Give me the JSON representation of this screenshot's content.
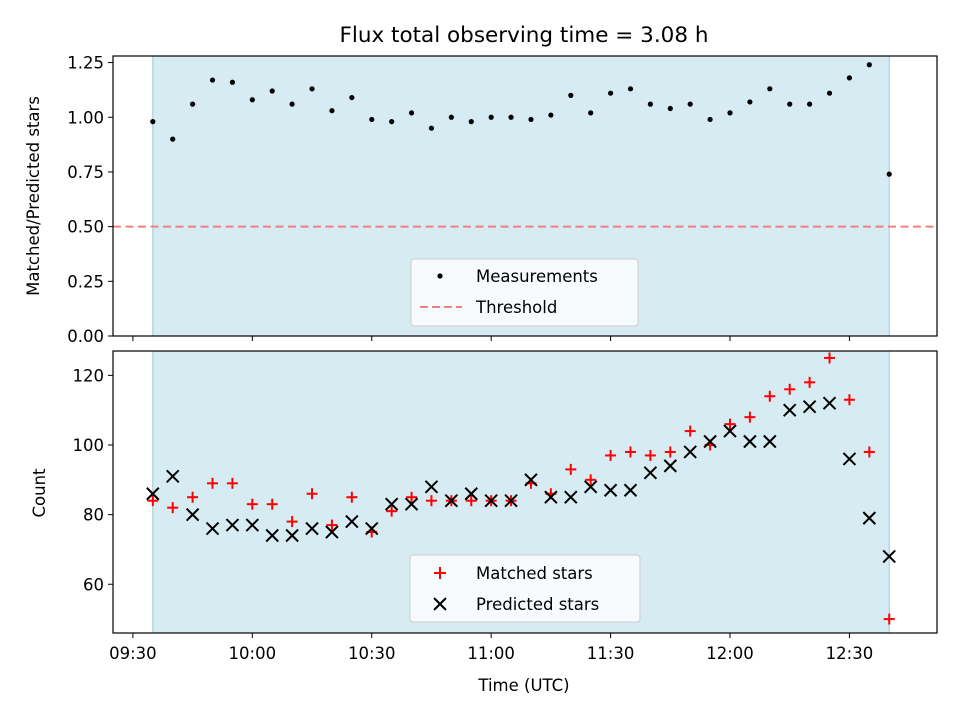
{
  "chart_data": [
    {
      "type": "scatter",
      "title": "Flux total observing time = 3.08 h",
      "xlabel": "",
      "ylabel": "Matched/Predicted stars",
      "ylim": [
        0,
        1.28
      ],
      "yticks": [
        "0.00",
        "0.25",
        "0.50",
        "0.75",
        "1.00",
        "1.25"
      ],
      "ytick_values": [
        0,
        0.25,
        0.5,
        0.75,
        1.0,
        1.25
      ],
      "xlim_minutes": [
        565,
        772
      ],
      "shaded_span_minutes": [
        575,
        760
      ],
      "series": [
        {
          "name": "Measurements",
          "marker": "dot",
          "color": "#000000",
          "x_minutes": [
            575,
            580,
            585,
            590,
            595,
            600,
            605,
            610,
            615,
            620,
            625,
            630,
            635,
            640,
            645,
            650,
            655,
            660,
            665,
            670,
            675,
            680,
            685,
            690,
            695,
            700,
            705,
            710,
            715,
            720,
            725,
            730,
            735,
            740,
            745,
            750,
            755,
            760
          ],
          "values": [
            0.98,
            0.9,
            1.06,
            1.17,
            1.16,
            1.08,
            1.12,
            1.06,
            1.13,
            1.03,
            1.09,
            0.99,
            0.98,
            1.02,
            0.95,
            1.0,
            0.98,
            1.0,
            1.0,
            0.99,
            1.01,
            1.1,
            1.02,
            1.11,
            1.13,
            1.06,
            1.04,
            1.06,
            0.99,
            1.02,
            1.07,
            1.13,
            1.06,
            1.06,
            1.11,
            1.18,
            1.24,
            0.74
          ]
        }
      ],
      "threshold": {
        "name": "Threshold",
        "value": 0.5,
        "color": "#f08080"
      },
      "legend_position": "lower-center"
    },
    {
      "type": "scatter",
      "title": "",
      "xlabel": "Time (UTC)",
      "ylabel": "Count",
      "ylim": [
        46,
        127
      ],
      "yticks": [
        "60",
        "80",
        "100",
        "120"
      ],
      "ytick_values": [
        60,
        80,
        100,
        120
      ],
      "xlim_minutes": [
        565,
        772
      ],
      "xticks": [
        "09:30",
        "10:00",
        "10:30",
        "11:00",
        "11:30",
        "12:00",
        "12:30"
      ],
      "xtick_minutes": [
        570,
        600,
        630,
        660,
        690,
        720,
        750
      ],
      "shaded_span_minutes": [
        575,
        760
      ],
      "series": [
        {
          "name": "Matched stars",
          "marker": "plus",
          "color": "#ff0000",
          "x_minutes": [
            575,
            580,
            585,
            590,
            595,
            600,
            605,
            610,
            615,
            620,
            625,
            630,
            635,
            640,
            645,
            650,
            655,
            660,
            665,
            670,
            675,
            680,
            685,
            690,
            695,
            700,
            705,
            710,
            715,
            720,
            725,
            730,
            735,
            740,
            745,
            750,
            755,
            760
          ],
          "values": [
            84,
            82,
            85,
            89,
            89,
            83,
            83,
            78,
            86,
            77,
            85,
            75,
            81,
            85,
            84,
            84,
            84,
            84,
            84,
            89,
            86,
            93,
            90,
            97,
            98,
            97,
            98,
            104,
            100,
            106,
            108,
            114,
            116,
            118,
            125,
            113,
            98,
            50
          ]
        },
        {
          "name": "Predicted stars",
          "marker": "x",
          "color": "#000000",
          "x_minutes": [
            575,
            580,
            585,
            590,
            595,
            600,
            605,
            610,
            615,
            620,
            625,
            630,
            635,
            640,
            645,
            650,
            655,
            660,
            665,
            670,
            675,
            680,
            685,
            690,
            695,
            700,
            705,
            710,
            715,
            720,
            725,
            730,
            735,
            740,
            745,
            750,
            755,
            760
          ],
          "values": [
            86,
            91,
            80,
            76,
            77,
            77,
            74,
            74,
            76,
            75,
            78,
            76,
            83,
            83,
            88,
            84,
            86,
            84,
            84,
            90,
            85,
            85,
            88,
            87,
            87,
            92,
            94,
            98,
            101,
            104,
            101,
            101,
            110,
            111,
            112,
            96,
            79,
            68
          ]
        }
      ],
      "legend_position": "lower-center"
    }
  ]
}
